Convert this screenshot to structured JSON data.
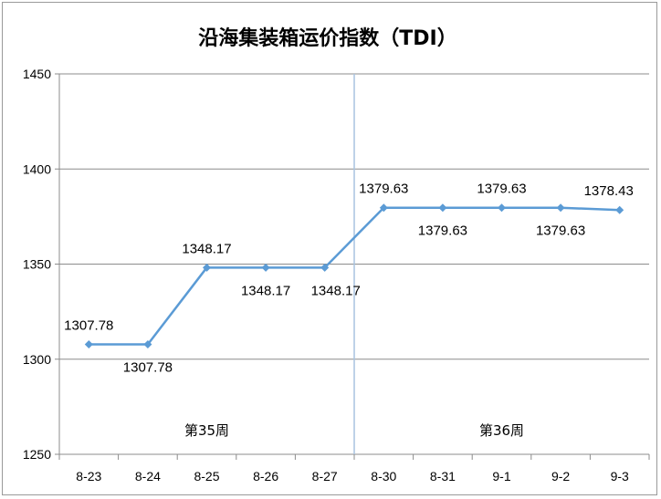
{
  "chart_data": {
    "type": "line",
    "title": "沿海集装箱运价指数（TDI）",
    "xlabel": "",
    "ylabel": "",
    "categories": [
      "8-23",
      "8-24",
      "8-25",
      "8-26",
      "8-27",
      "8-30",
      "8-31",
      "9-1",
      "9-2",
      "9-3"
    ],
    "series": [
      {
        "values": [
          1307.78,
          1307.78,
          1348.17,
          1348.17,
          1348.17,
          1379.63,
          1379.63,
          1379.63,
          1379.63,
          1378.43
        ],
        "labels": [
          "1307.78",
          "1307.78",
          "1348.17",
          "1348.17",
          "1348.17",
          "1379.63",
          "1379.63",
          "1379.63",
          "1379.63",
          "1378.43"
        ],
        "color": "#5b9bd5"
      }
    ],
    "ylim": [
      1250,
      1450
    ],
    "yticks": [
      "1450",
      "1400",
      "1350",
      "1300",
      "1250"
    ],
    "grid": true,
    "week_groups": [
      {
        "label": "第35周",
        "start": 0,
        "end": 4
      },
      {
        "label": "第36周",
        "start": 5,
        "end": 9
      }
    ],
    "separator_color": "#a9c4e0"
  }
}
